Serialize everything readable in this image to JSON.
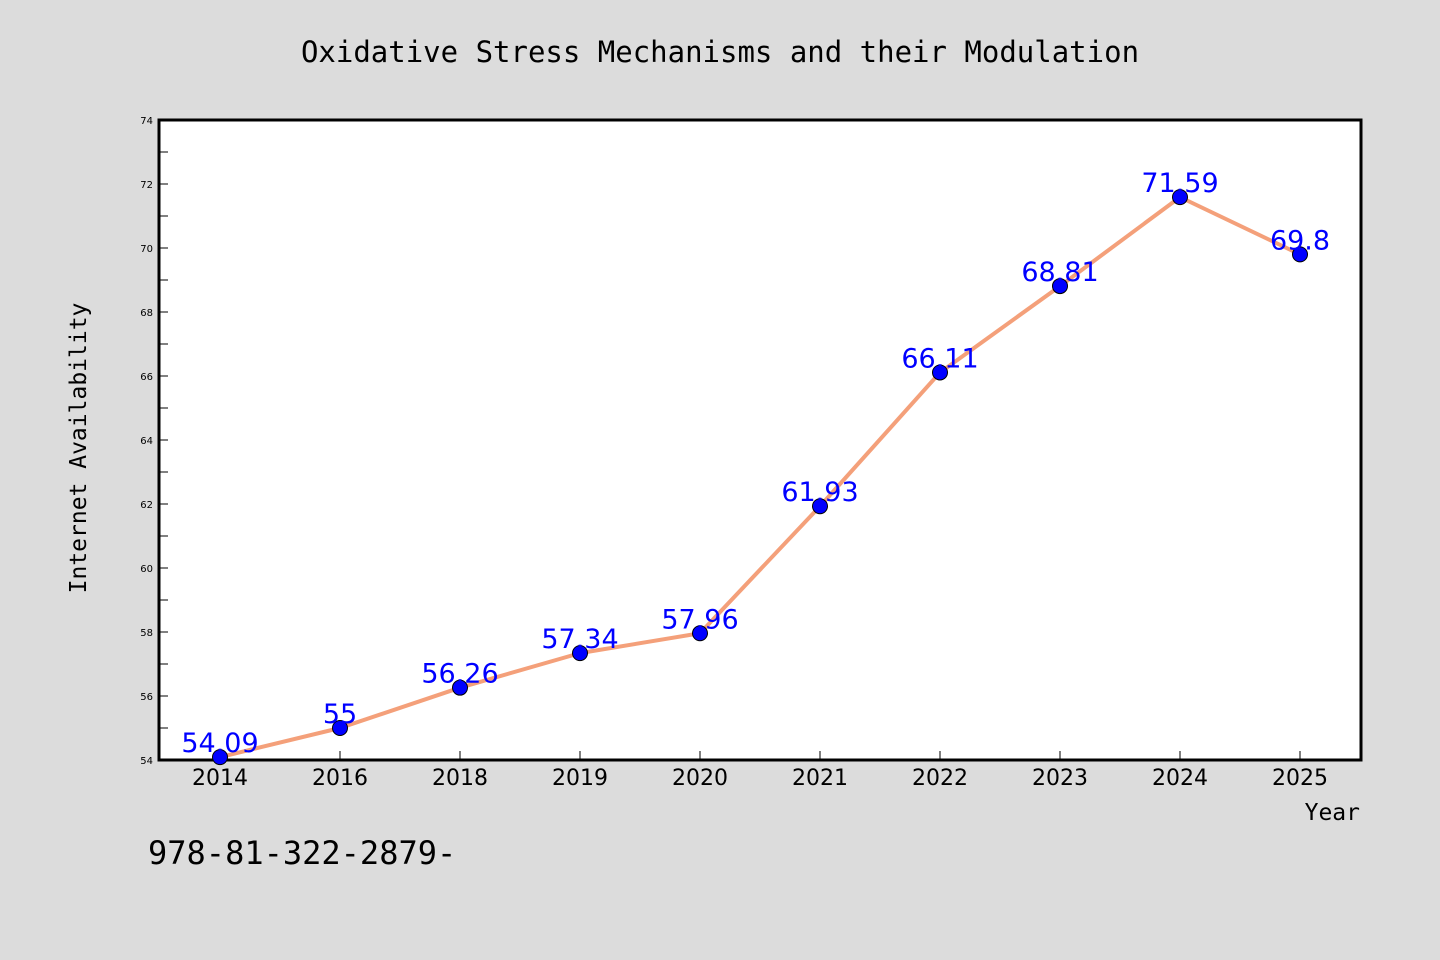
{
  "chart_data": {
    "type": "line",
    "title": "Oxidative Stress Mechanisms and their Modulation",
    "xlabel": "Year",
    "ylabel": "Internet Availability",
    "categories": [
      "2014",
      "2016",
      "2018",
      "2019",
      "2020",
      "2021",
      "2022",
      "2023",
      "2024",
      "2025"
    ],
    "series": [
      {
        "values": [
          54.09,
          55,
          56.26,
          57.34,
          57.96,
          61.93,
          66.11,
          68.81,
          71.59,
          69.8
        ],
        "labels": [
          "54.09",
          "55",
          "56.26",
          "57.34",
          "57.96",
          "61.93",
          "66.11",
          "68.81",
          "71.59",
          "69.8"
        ],
        "line_color": "#f4a07a",
        "marker_color": "#0000ff",
        "label_color": "#0000ff"
      }
    ],
    "ylim": [
      54,
      74
    ],
    "yticks": [
      "54",
      "56",
      "58",
      "60",
      "62",
      "64",
      "66",
      "68",
      "70",
      "72",
      "74"
    ],
    "grid": false,
    "legend": "none",
    "background": "#dcdcdc",
    "plot_background": "#ffffff"
  },
  "annotation": "978-81-322-2879-"
}
